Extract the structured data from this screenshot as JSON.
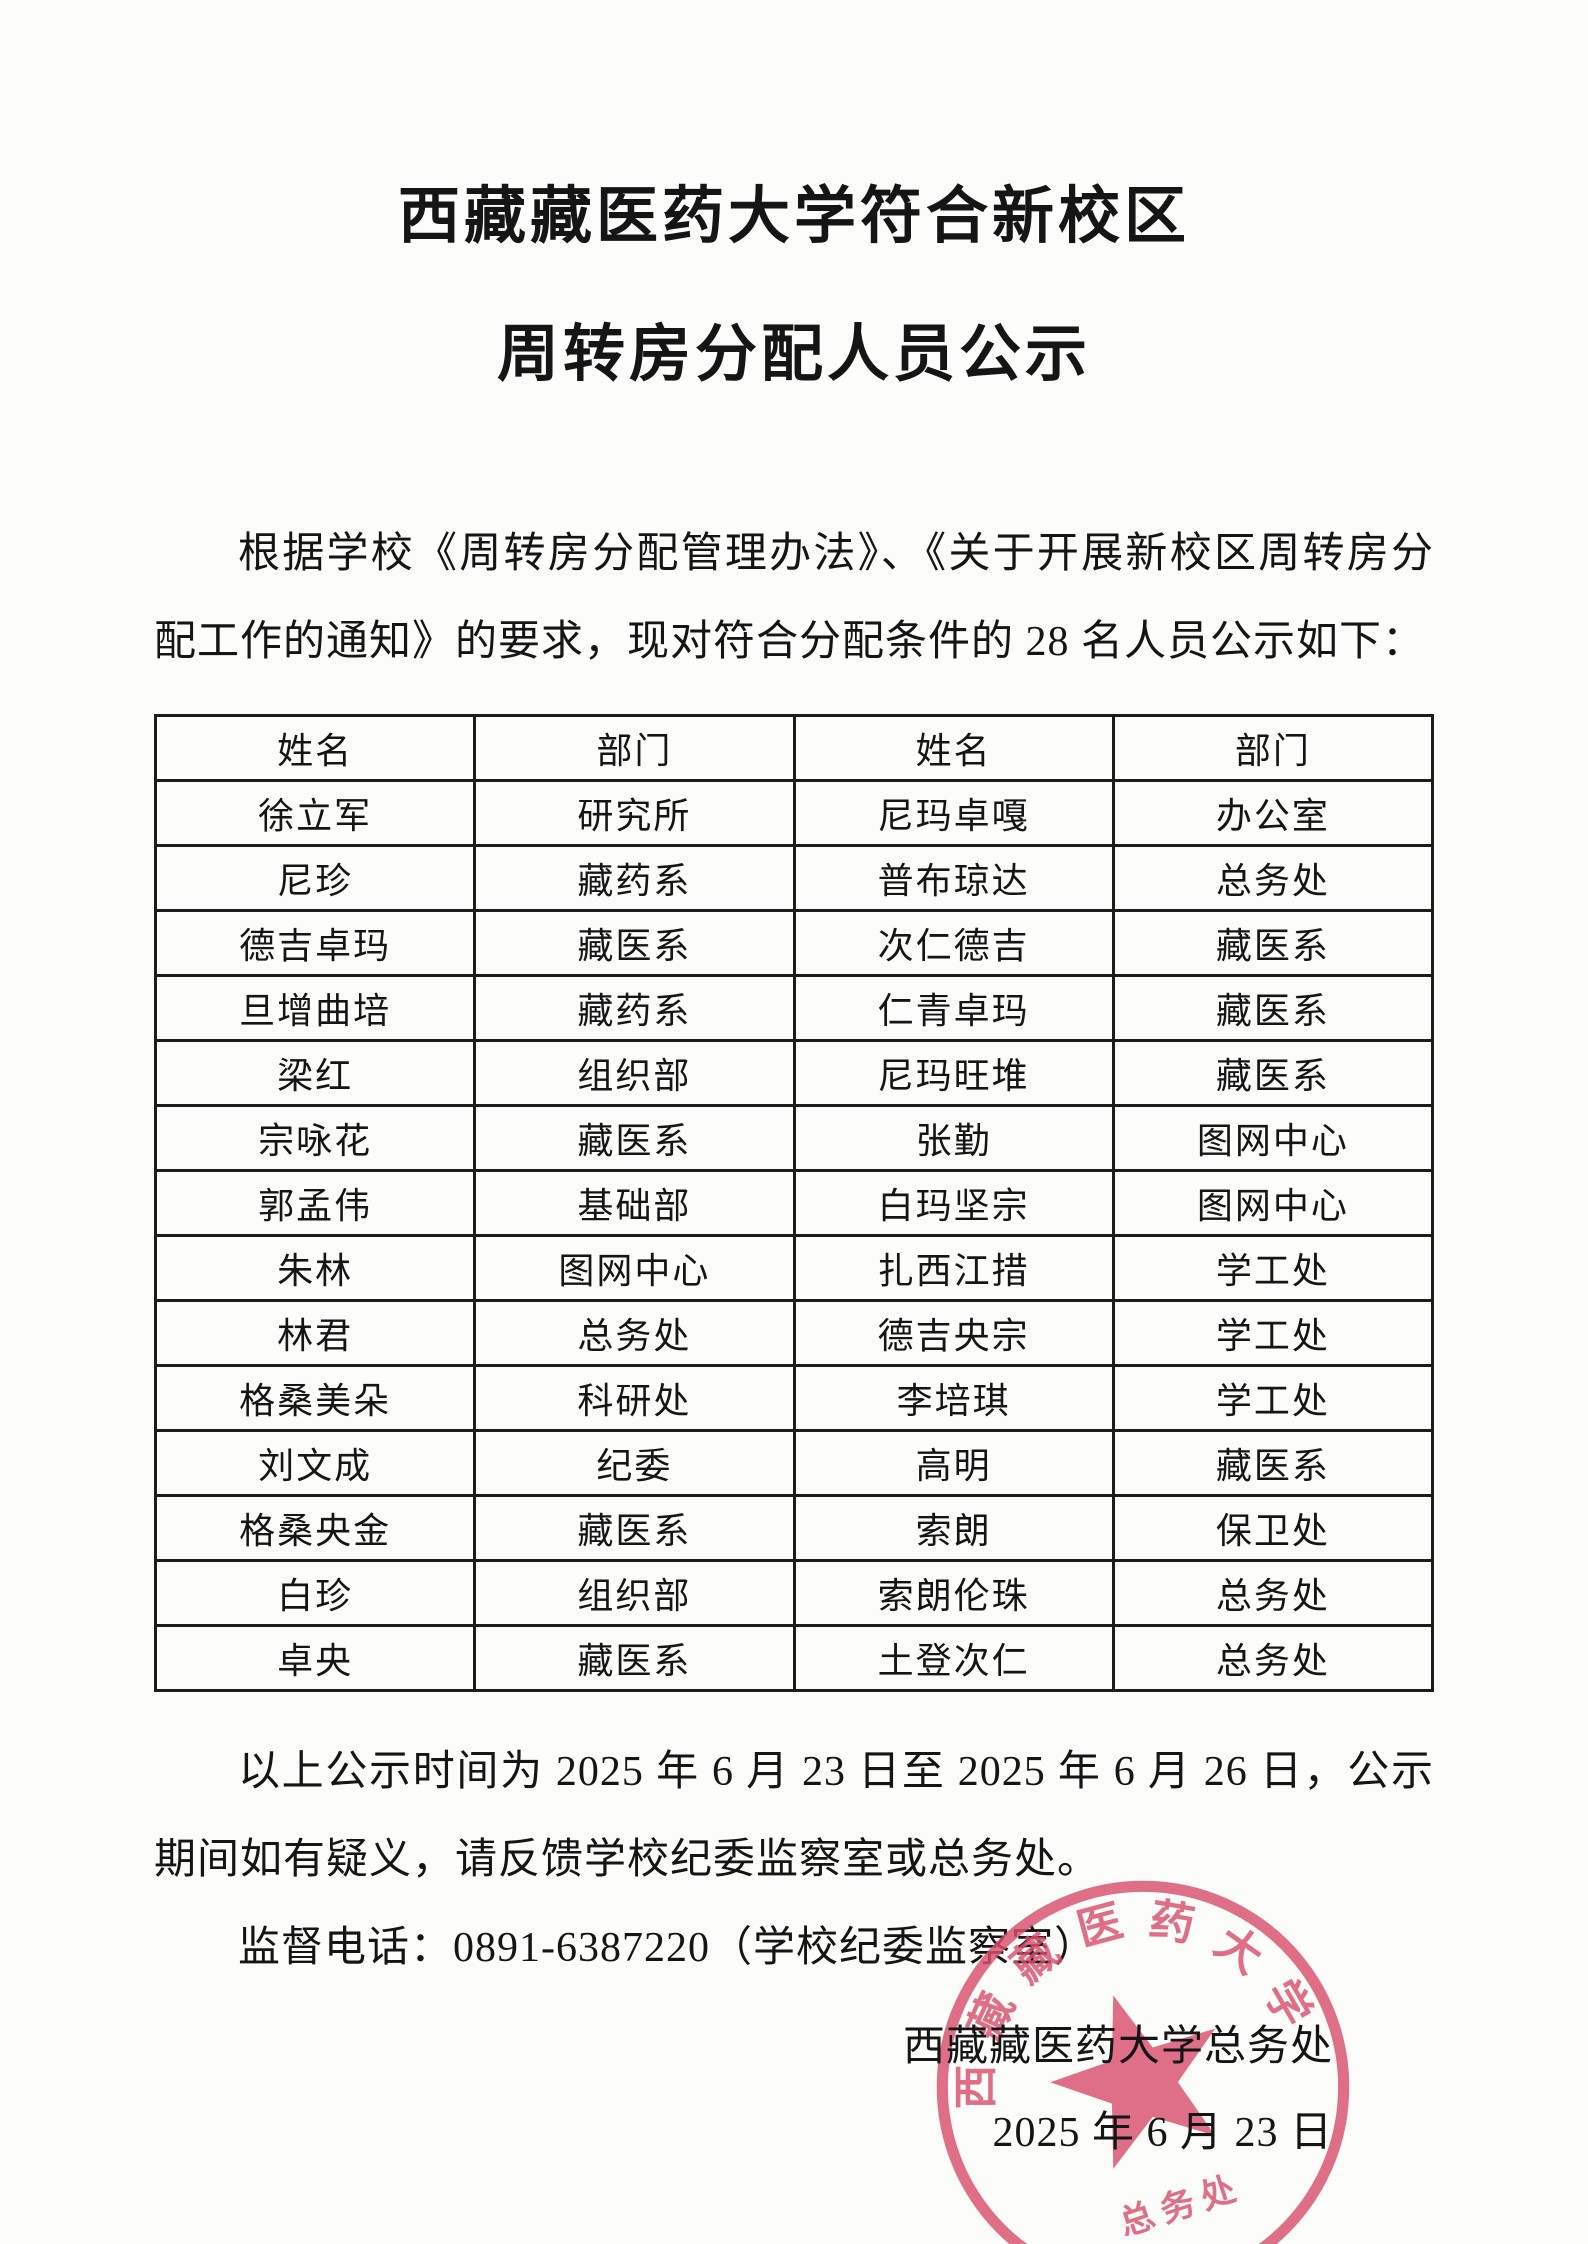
{
  "document": {
    "title": [
      "西藏藏医药大学符合新校区",
      "周转房分配人员公示"
    ],
    "intro": "根据学校《周转房分配管理办法》、《关于开展新校区周转房分配工作的通知》的要求，现对符合分配条件的 28 名人员公示如下：",
    "table": {
      "headers": [
        "姓名",
        "部门",
        "姓名",
        "部门"
      ],
      "rows": [
        [
          "徐立军",
          "研究所",
          "尼玛卓嘎",
          "办公室"
        ],
        [
          "尼珍",
          "藏药系",
          "普布琼达",
          "总务处"
        ],
        [
          "德吉卓玛",
          "藏医系",
          "次仁德吉",
          "藏医系"
        ],
        [
          "旦增曲培",
          "藏药系",
          "仁青卓玛",
          "藏医系"
        ],
        [
          "梁红",
          "组织部",
          "尼玛旺堆",
          "藏医系"
        ],
        [
          "宗咏花",
          "藏医系",
          "张勤",
          "图网中心"
        ],
        [
          "郭孟伟",
          "基础部",
          "白玛坚宗",
          "图网中心"
        ],
        [
          "朱林",
          "图网中心",
          "扎西江措",
          "学工处"
        ],
        [
          "林君",
          "总务处",
          "德吉央宗",
          "学工处"
        ],
        [
          "格桑美朵",
          "科研处",
          "李培琪",
          "学工处"
        ],
        [
          "刘文成",
          "纪委",
          "高明",
          "藏医系"
        ],
        [
          "格桑央金",
          "藏医系",
          "索朗",
          "保卫处"
        ],
        [
          "白珍",
          "组织部",
          "索朗伦珠",
          "总务处"
        ],
        [
          "卓央",
          "藏医系",
          "土登次仁",
          "总务处"
        ]
      ]
    },
    "closing": "以上公示时间为 2025 年 6 月 23 日至 2025 年 6 月 26 日，公示期间如有疑义，请反馈学校纪委监察室或总务处。",
    "phone_line": "监督电话：0891-6387220（学校纪委监察室）",
    "signature": "西藏藏医药大学总务处",
    "date": "2025 年 6 月 23 日",
    "seal": {
      "ring_text": "西藏藏医药大学",
      "bottom_text": "总务处",
      "color": "#d94f6e"
    }
  }
}
